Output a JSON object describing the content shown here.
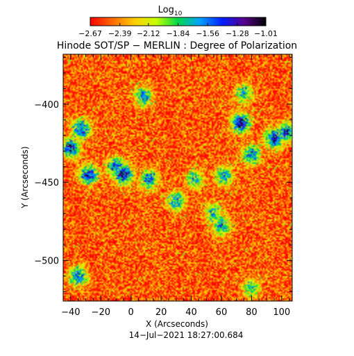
{
  "chart_data": {
    "type": "heatmap",
    "title": "Hinode SOT/SP − MERLIN : Degree of Polarization",
    "xlabel": "X (Arcseconds)",
    "ylabel": "Y (Arcseconds)",
    "xlim": [
      -45,
      107
    ],
    "ylim": [
      -526,
      -368
    ],
    "x_ticks": [
      -40,
      -20,
      0,
      20,
      40,
      60,
      80,
      100
    ],
    "x_tick_labels": [
      "−40",
      "−20",
      "0",
      "20",
      "40",
      "60",
      "80",
      "100"
    ],
    "y_ticks": [
      -400,
      -450,
      -500
    ],
    "y_tick_labels": [
      "−400",
      "−450",
      "−500"
    ],
    "colorbar": {
      "title_main": "Log",
      "title_sub": "10",
      "range": [
        -2.67,
        -1.01
      ],
      "tick_values": [
        -2.67,
        -2.39,
        -2.12,
        -1.84,
        -1.56,
        -1.28,
        -1.01
      ],
      "tick_labels": [
        "−2.67",
        "−2.39",
        "−2.12",
        "−1.84",
        "−1.56",
        "−1.28",
        "−1.01"
      ],
      "colormap": [
        "#ff0000",
        "#ff6a00",
        "#ffcc00",
        "#c8ff00",
        "#00d84a",
        "#00a0ff",
        "#0020ff",
        "#5a0090",
        "#000000"
      ]
    },
    "background_level": -2.5,
    "regions": [
      {
        "x": -40,
        "y": -428,
        "level": -1.3
      },
      {
        "x": -33,
        "y": -416,
        "level": -1.4
      },
      {
        "x": -28,
        "y": -445,
        "level": -1.35
      },
      {
        "x": -10,
        "y": -440,
        "level": -1.5
      },
      {
        "x": -5,
        "y": -445,
        "level": -1.2
      },
      {
        "x": 8,
        "y": -395,
        "level": -1.6
      },
      {
        "x": 12,
        "y": -448,
        "level": -1.5
      },
      {
        "x": 30,
        "y": -462,
        "level": -1.6
      },
      {
        "x": 42,
        "y": -448,
        "level": -1.7
      },
      {
        "x": 55,
        "y": -470,
        "level": -1.7
      },
      {
        "x": 60,
        "y": -478,
        "level": -1.6
      },
      {
        "x": 62,
        "y": -446,
        "level": -1.6
      },
      {
        "x": 73,
        "y": -412,
        "level": -1.2
      },
      {
        "x": 75,
        "y": -393,
        "level": -1.7
      },
      {
        "x": 80,
        "y": -432,
        "level": -1.5
      },
      {
        "x": 95,
        "y": -422,
        "level": -1.3
      },
      {
        "x": 103,
        "y": -418,
        "level": -1.35
      },
      {
        "x": -35,
        "y": -510,
        "level": -1.5
      },
      {
        "x": 80,
        "y": -518,
        "level": -1.8
      }
    ]
  },
  "timestamp": "14−Jul−2021 18:27:00.684"
}
